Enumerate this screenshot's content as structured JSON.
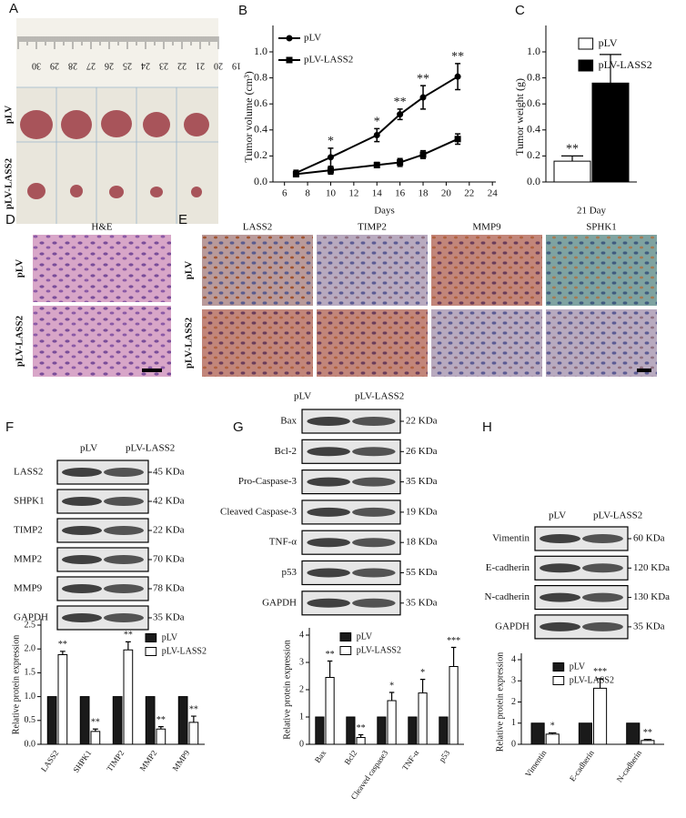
{
  "panels": {
    "A": {
      "label": "A",
      "ruler": [
        "30",
        "29",
        "28",
        "27",
        "26",
        "25",
        "24",
        "23",
        "22",
        "21",
        "20",
        "19"
      ],
      "rows": [
        "pLV",
        "pLV-LASS2"
      ]
    },
    "B": {
      "label": "B"
    },
    "C": {
      "label": "C"
    },
    "D": {
      "label": "D",
      "title": "H&E",
      "rows": [
        "pLV",
        "pLV-LASS2"
      ]
    },
    "E": {
      "label": "E",
      "columns": [
        "LASS2",
        "TIMP2",
        "MMP9",
        "SPHK1"
      ],
      "rows": [
        "pLV",
        "pLV-LASS2"
      ]
    },
    "F": {
      "label": "F",
      "blot": {
        "headers": [
          "pLV",
          "pLV-LASS2"
        ],
        "rows": [
          {
            "name": "LASS2",
            "kda": "45 KDa"
          },
          {
            "name": "SHPK1",
            "kda": "42 KDa"
          },
          {
            "name": "TIMP2",
            "kda": "22 KDa"
          },
          {
            "name": "MMP2",
            "kda": "70 KDa"
          },
          {
            "name": "MMP9",
            "kda": "78 KDa"
          },
          {
            "name": "GAPDH",
            "kda": "35 KDa"
          }
        ]
      }
    },
    "G": {
      "label": "G",
      "blot": {
        "headers": [
          "pLV",
          "pLV-LASS2"
        ],
        "rows": [
          {
            "name": "Bax",
            "kda": "22 KDa"
          },
          {
            "name": "Bcl-2",
            "kda": "26 KDa"
          },
          {
            "name": "Pro-Caspase-3",
            "kda": "35 KDa"
          },
          {
            "name": "Cleaved Caspase-3",
            "kda": "19 KDa"
          },
          {
            "name": "TNF-α",
            "kda": "18 KDa"
          },
          {
            "name": "p53",
            "kda": "55 KDa"
          },
          {
            "name": "GAPDH",
            "kda": "35 KDa"
          }
        ]
      }
    },
    "H": {
      "label": "H",
      "blot": {
        "headers": [
          "pLV",
          "pLV-LASS2"
        ],
        "rows": [
          {
            "name": "Vimentin",
            "kda": "60 KDa"
          },
          {
            "name": "E-cadherin",
            "kda": "120 KDa"
          },
          {
            "name": "N-cadherin",
            "kda": "130 KDa"
          },
          {
            "name": "GAPDH",
            "kda": "35 KDa"
          }
        ]
      }
    }
  },
  "chart_data": [
    {
      "type": "line",
      "x_label": "Days",
      "y_label": "Tumor volume (cm³)",
      "x": [
        7,
        10,
        14,
        16,
        18,
        21
      ],
      "series": [
        {
          "name": "pLV",
          "color": "#000000",
          "marker": "circle",
          "values": [
            0.07,
            0.19,
            0.36,
            0.52,
            0.65,
            0.81
          ],
          "errors": [
            0.02,
            0.07,
            0.05,
            0.04,
            0.09,
            0.1
          ]
        },
        {
          "name": "pLV-LASS2",
          "color": "#000000",
          "marker": "square",
          "values": [
            0.06,
            0.09,
            0.13,
            0.15,
            0.21,
            0.33
          ],
          "errors": [
            0.02,
            0.03,
            0.02,
            0.03,
            0.03,
            0.04
          ]
        }
      ],
      "annotations": [
        {
          "x": 10,
          "series": "pLV",
          "text": "*"
        },
        {
          "x": 14,
          "series": "pLV",
          "text": "*"
        },
        {
          "x": 16,
          "series": "pLV",
          "text": "**"
        },
        {
          "x": 18,
          "series": "pLV",
          "text": "**"
        },
        {
          "x": 21,
          "series": "pLV",
          "text": "**"
        }
      ],
      "xlim": [
        5,
        24.3
      ],
      "xticks": [
        6,
        8,
        10,
        12,
        14,
        16,
        18,
        20,
        22,
        24
      ],
      "ylim": [
        0,
        1.0
      ],
      "yticks": [
        {
          "value": 0,
          "label": "0.0"
        },
        {
          "value": 0.2,
          "label": "0.2"
        },
        {
          "value": 0.4,
          "label": "0.4"
        },
        {
          "value": 0.6,
          "label": "0.6"
        },
        {
          "value": 0.8,
          "label": "0.8"
        },
        {
          "value": 1.0,
          "label": "1.0"
        }
      ],
      "legend": "upper-left"
    },
    {
      "type": "bar",
      "y_label": "Tumor weight (g)",
      "categories": [
        "21 Day"
      ],
      "series": [
        {
          "name": "pLV",
          "color": "#ffffff",
          "values": [
            0.16
          ],
          "errors": [
            0.04
          ]
        },
        {
          "name": "pLV-LASS2",
          "color": "#000000",
          "values": [
            0.76
          ],
          "errors": [
            0.22
          ]
        }
      ],
      "annotations": [
        {
          "category": "21 Day",
          "series": "pLV",
          "text": "**"
        }
      ],
      "ylim": [
        0,
        1.0
      ],
      "yticks": [
        {
          "value": 0,
          "label": "0.0"
        },
        {
          "value": 0.2,
          "label": "0.2"
        },
        {
          "value": 0.4,
          "label": "0.4"
        },
        {
          "value": 0.6,
          "label": "0.6"
        },
        {
          "value": 0.8,
          "label": "0.8"
        },
        {
          "value": 1.0,
          "label": "1.0"
        }
      ],
      "legend": "upper-right"
    },
    {
      "type": "bar",
      "y_label": "Relative protein expression",
      "categories": [
        "LASS2",
        "SHPK1",
        "TIMP2",
        "MMP2",
        "MMP9"
      ],
      "series": [
        {
          "name": "pLV",
          "color": "#1a1a1a",
          "values": [
            1,
            1,
            1,
            1,
            1
          ]
        },
        {
          "name": "pLV-LASS2",
          "color": "#ffffff",
          "values": [
            1.88,
            0.27,
            1.98,
            0.32,
            0.46
          ],
          "errors": [
            0.07,
            0.05,
            0.17,
            0.05,
            0.13
          ]
        }
      ],
      "annotations": [
        {
          "category": "LASS2",
          "series": "pLV-LASS2",
          "text": "**"
        },
        {
          "category": "SHPK1",
          "series": "pLV-LASS2",
          "text": "**"
        },
        {
          "category": "TIMP2",
          "series": "pLV-LASS2",
          "text": "**"
        },
        {
          "category": "MMP2",
          "series": "pLV-LASS2",
          "text": "**"
        },
        {
          "category": "MMP9",
          "series": "pLV-LASS2",
          "text": "**"
        }
      ],
      "ylim": [
        0,
        2.5
      ],
      "yticks": [
        {
          "value": 0,
          "label": "0.0"
        },
        {
          "value": 0.5,
          "label": "0.5"
        },
        {
          "value": 1.0,
          "label": "1.0"
        },
        {
          "value": 1.5,
          "label": "1.5"
        },
        {
          "value": 2.0,
          "label": "2.0"
        },
        {
          "value": 2.5,
          "label": "2.5"
        }
      ],
      "legend": "upper-right"
    },
    {
      "type": "bar",
      "y_label": "Relative protein expression",
      "categories": [
        "Bax",
        "Bcl2",
        "Cleaved caspase3",
        "TNF-α",
        "p53"
      ],
      "series": [
        {
          "name": "pLV",
          "color": "#1a1a1a",
          "values": [
            1,
            1,
            1,
            1,
            1
          ]
        },
        {
          "name": "pLV-LASS2",
          "color": "#ffffff",
          "values": [
            2.45,
            0.25,
            1.6,
            1.88,
            2.85
          ],
          "errors": [
            0.6,
            0.1,
            0.3,
            0.5,
            0.7
          ]
        }
      ],
      "annotations": [
        {
          "category": "Bax",
          "series": "pLV-LASS2",
          "text": "**"
        },
        {
          "category": "Bcl2",
          "series": "pLV-LASS2",
          "text": "**"
        },
        {
          "category": "Cleaved caspase3",
          "series": "pLV-LASS2",
          "text": "*"
        },
        {
          "category": "TNF-α",
          "series": "pLV-LASS2",
          "text": "*"
        },
        {
          "category": "p53",
          "series": "pLV-LASS2",
          "text": "***"
        }
      ],
      "ylim": [
        0,
        4
      ],
      "yticks": [
        0,
        1,
        2,
        3,
        4
      ],
      "legend": "upper-left"
    },
    {
      "type": "bar",
      "y_label": "Relative protein expression",
      "categories": [
        "Vimentin",
        "E-cadherin",
        "N-cadherin"
      ],
      "series": [
        {
          "name": "pLV",
          "color": "#1a1a1a",
          "values": [
            1,
            1,
            1
          ]
        },
        {
          "name": "pLV-LASS2",
          "color": "#ffffff",
          "values": [
            0.48,
            2.65,
            0.18
          ],
          "errors": [
            0.06,
            0.45,
            0.05
          ]
        }
      ],
      "annotations": [
        {
          "category": "Vimentin",
          "series": "pLV-LASS2",
          "text": "*"
        },
        {
          "category": "E-cadherin",
          "series": "pLV-LASS2",
          "text": "***"
        },
        {
          "category": "N-cadherin",
          "series": "pLV-LASS2",
          "text": "**"
        }
      ],
      "ylim": [
        0,
        4
      ],
      "yticks": [
        0,
        1,
        2,
        3,
        4
      ],
      "legend": "upper-left"
    }
  ]
}
